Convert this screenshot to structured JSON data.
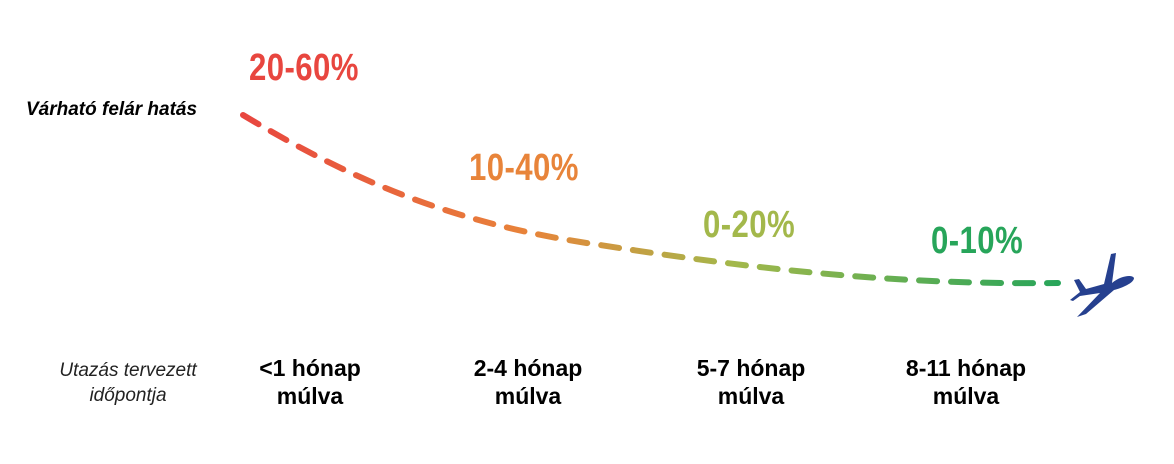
{
  "y_label": "Várható felár hatás",
  "x_label": [
    "Utazás tervezett",
    "időpontja"
  ],
  "stages": [
    {
      "surcharge": "20-60%",
      "period": [
        "<1 hónap",
        "múlva"
      ],
      "color": "#e8463f"
    },
    {
      "surcharge": "10-40%",
      "period": [
        "2-4 hónap",
        "múlva"
      ],
      "color": "#e8843a"
    },
    {
      "surcharge": "0-20%",
      "period": [
        "5-7 hónap",
        "múlva"
      ],
      "color": "#a3b84b"
    },
    {
      "surcharge": "0-10%",
      "period": [
        "8-11 hónap",
        "múlva"
      ],
      "color": "#27a55a"
    }
  ],
  "icons": {
    "end": "airplane-icon",
    "end_color": "#26408f"
  }
}
